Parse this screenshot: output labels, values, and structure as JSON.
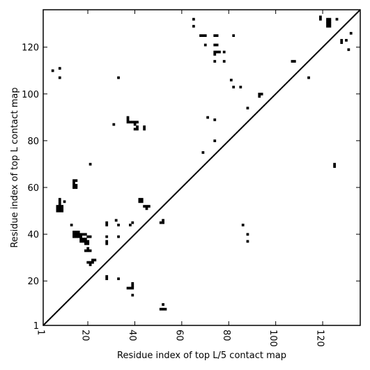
{
  "chart_data": {
    "type": "heatmap",
    "xlabel": "Residue index of top L/5 contact map",
    "ylabel": "Residue index of top L contact map",
    "xlim": [
      1,
      136
    ],
    "ylim": [
      1,
      136
    ],
    "x_ticks": [
      {
        "value": 1,
        "label": "1"
      },
      {
        "value": 20,
        "label": "20"
      },
      {
        "value": 40,
        "label": "40"
      },
      {
        "value": 60,
        "label": "60"
      },
      {
        "value": 80,
        "label": "80"
      },
      {
        "value": 100,
        "label": "100"
      },
      {
        "value": 120,
        "label": "120"
      }
    ],
    "y_ticks": [
      {
        "value": 1,
        "label": "1"
      },
      {
        "value": 20,
        "label": "20"
      },
      {
        "value": 40,
        "label": "40"
      },
      {
        "value": 60,
        "label": "60"
      },
      {
        "value": 80,
        "label": "80"
      },
      {
        "value": 100,
        "label": "100"
      },
      {
        "value": 120,
        "label": "120"
      }
    ],
    "diagonal": [
      [
        1,
        1
      ],
      [
        136,
        136
      ]
    ],
    "contacts_below_diagonal": [
      [
        7,
        52
      ],
      [
        8,
        52
      ],
      [
        9,
        52
      ],
      [
        7,
        51
      ],
      [
        8,
        51
      ],
      [
        9,
        51
      ],
      [
        7,
        50
      ],
      [
        8,
        50
      ],
      [
        9,
        50
      ],
      [
        8,
        53
      ],
      [
        8,
        54
      ],
      [
        8,
        55
      ],
      [
        10,
        54
      ],
      [
        13,
        44
      ],
      [
        14,
        63
      ],
      [
        15,
        63
      ],
      [
        14,
        62
      ],
      [
        15,
        61
      ],
      [
        14,
        61
      ],
      [
        15,
        60
      ],
      [
        14,
        60
      ],
      [
        14,
        41
      ],
      [
        15,
        41
      ],
      [
        14,
        40
      ],
      [
        15,
        40
      ],
      [
        16,
        40
      ],
      [
        14,
        39
      ],
      [
        15,
        39
      ],
      [
        16,
        39
      ],
      [
        17,
        39
      ],
      [
        16,
        41
      ],
      [
        17,
        40
      ],
      [
        18,
        40
      ],
      [
        19,
        40
      ],
      [
        17,
        38
      ],
      [
        18,
        38
      ],
      [
        19,
        38
      ],
      [
        17,
        37
      ],
      [
        18,
        37
      ],
      [
        19,
        37
      ],
      [
        20,
        39
      ],
      [
        21,
        39
      ],
      [
        19,
        36
      ],
      [
        20,
        36
      ],
      [
        20,
        37
      ],
      [
        19,
        33
      ],
      [
        20,
        33
      ],
      [
        21,
        33
      ],
      [
        20,
        34
      ],
      [
        20,
        28
      ],
      [
        21,
        28
      ],
      [
        21,
        27
      ],
      [
        22,
        29
      ],
      [
        23,
        29
      ],
      [
        22,
        28
      ],
      [
        21,
        70
      ],
      [
        28,
        45
      ],
      [
        28,
        44
      ],
      [
        28,
        39
      ],
      [
        28,
        37
      ],
      [
        28,
        36
      ],
      [
        28,
        22
      ],
      [
        28,
        21
      ],
      [
        31,
        87
      ],
      [
        32,
        46
      ],
      [
        33,
        44
      ],
      [
        33,
        39
      ],
      [
        33,
        21
      ],
      [
        33,
        107
      ],
      [
        37,
        90
      ],
      [
        37,
        89
      ],
      [
        37,
        88
      ],
      [
        38,
        88
      ],
      [
        39,
        88
      ],
      [
        40,
        88
      ],
      [
        41,
        88
      ],
      [
        40,
        87
      ],
      [
        41,
        86
      ],
      [
        40,
        85
      ],
      [
        41,
        85
      ],
      [
        44,
        86
      ],
      [
        44,
        85
      ],
      [
        38,
        44
      ],
      [
        39,
        45
      ],
      [
        42,
        55
      ],
      [
        43,
        55
      ],
      [
        42,
        54
      ],
      [
        43,
        54
      ],
      [
        44,
        52
      ],
      [
        45,
        52
      ],
      [
        46,
        52
      ],
      [
        45,
        51
      ],
      [
        37,
        17
      ],
      [
        38,
        17
      ],
      [
        39,
        17
      ],
      [
        39,
        18
      ],
      [
        39,
        19
      ],
      [
        39,
        14
      ],
      [
        51,
        45
      ],
      [
        52,
        45
      ],
      [
        52,
        46
      ],
      [
        52,
        10
      ],
      [
        51,
        8
      ],
      [
        52,
        8
      ],
      [
        53,
        8
      ],
      [
        5,
        110
      ],
      [
        8,
        111
      ],
      [
        8,
        107
      ]
    ],
    "contacts_above_diagonal": [
      [
        65,
        132
      ],
      [
        65,
        129
      ],
      [
        68,
        125
      ],
      [
        69,
        125
      ],
      [
        70,
        125
      ],
      [
        70,
        121
      ],
      [
        74,
        125
      ],
      [
        75,
        125
      ],
      [
        74,
        121
      ],
      [
        75,
        121
      ],
      [
        74,
        118
      ],
      [
        75,
        118
      ],
      [
        74,
        117
      ],
      [
        76,
        118
      ],
      [
        78,
        118
      ],
      [
        74,
        114
      ],
      [
        78,
        114
      ],
      [
        82,
        125
      ],
      [
        81,
        106
      ],
      [
        82,
        103
      ],
      [
        85,
        103
      ],
      [
        93,
        100
      ],
      [
        94,
        100
      ],
      [
        93,
        99
      ],
      [
        88,
        94
      ],
      [
        107,
        114
      ],
      [
        108,
        114
      ],
      [
        114,
        107
      ],
      [
        119,
        133
      ],
      [
        119,
        132
      ],
      [
        122,
        132
      ],
      [
        123,
        132
      ],
      [
        122,
        131
      ],
      [
        123,
        131
      ],
      [
        122,
        130
      ],
      [
        123,
        130
      ],
      [
        122,
        129
      ],
      [
        123,
        129
      ],
      [
        126,
        132
      ],
      [
        128,
        123
      ],
      [
        128,
        122
      ],
      [
        130,
        123
      ],
      [
        132,
        126
      ],
      [
        131,
        119
      ],
      [
        125,
        70
      ],
      [
        125,
        69
      ]
    ],
    "contacts_near_diagonal_lower": [
      [
        69,
        75
      ],
      [
        71,
        90
      ],
      [
        74,
        89
      ],
      [
        74,
        80
      ],
      [
        86,
        44
      ],
      [
        88,
        40
      ],
      [
        88,
        37
      ]
    ]
  }
}
